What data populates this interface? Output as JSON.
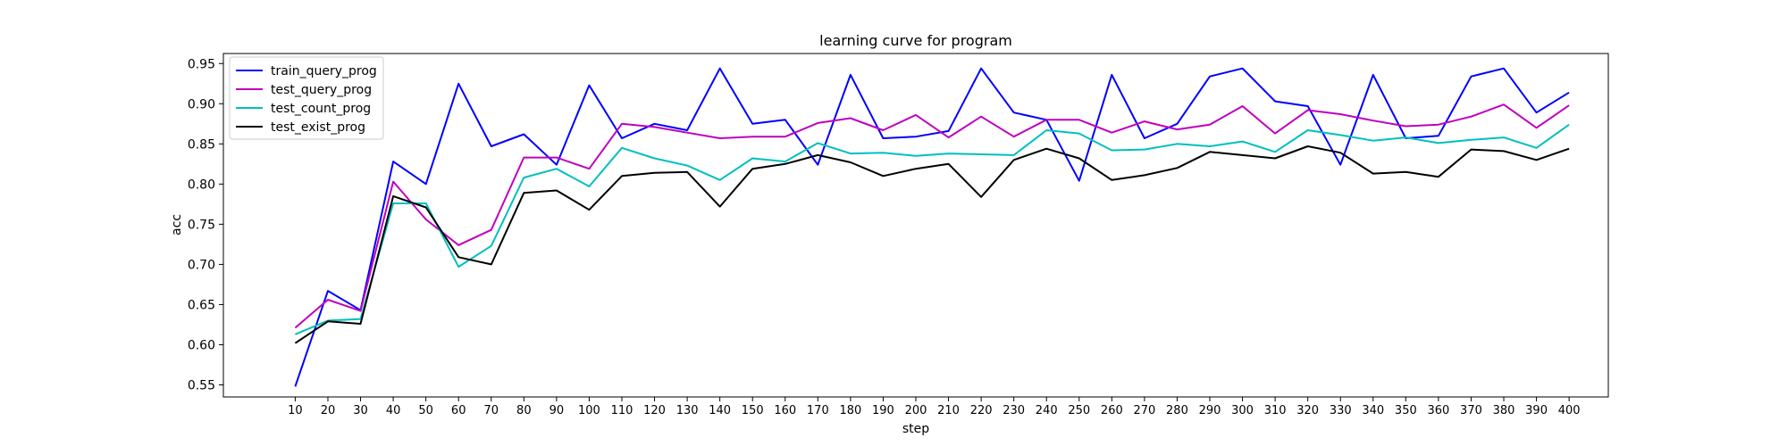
{
  "chart_data": {
    "type": "line",
    "title": "learning curve for program",
    "xlabel": "step",
    "ylabel": "acc",
    "xlim": [
      -12,
      412
    ],
    "ylim": [
      0.535,
      0.9625
    ],
    "x": [
      10,
      20,
      30,
      40,
      50,
      60,
      70,
      80,
      90,
      100,
      110,
      120,
      130,
      140,
      150,
      160,
      170,
      180,
      190,
      200,
      210,
      220,
      230,
      240,
      250,
      260,
      270,
      280,
      290,
      300,
      310,
      320,
      330,
      340,
      350,
      360,
      370,
      380,
      390,
      400
    ],
    "x_tick_labels": [
      "10",
      "20",
      "30",
      "40",
      "50",
      "60",
      "70",
      "80",
      "90",
      "100",
      "110",
      "120",
      "130",
      "140",
      "150",
      "160",
      "170",
      "180",
      "190",
      "200",
      "210",
      "220",
      "230",
      "240",
      "250",
      "260",
      "270",
      "280",
      "290",
      "300",
      "310",
      "320",
      "330",
      "340",
      "350",
      "360",
      "370",
      "380",
      "390",
      "400"
    ],
    "y_ticks": [
      0.55,
      0.6,
      0.65,
      0.7,
      0.75,
      0.8,
      0.85,
      0.9,
      0.95
    ],
    "y_tick_labels": [
      "0.55",
      "0.60",
      "0.65",
      "0.70",
      "0.75",
      "0.80",
      "0.85",
      "0.90",
      "0.95"
    ],
    "grid": false,
    "legend_position": "top-left",
    "series": [
      {
        "name": "train_query_prog",
        "color": "#0000ff",
        "values": [
          0.548,
          0.667,
          0.643,
          0.828,
          0.8,
          0.925,
          0.847,
          0.862,
          0.824,
          0.923,
          0.857,
          0.875,
          0.867,
          0.944,
          0.875,
          0.88,
          0.824,
          0.936,
          0.857,
          0.859,
          0.866,
          0.944,
          0.889,
          0.88,
          0.804,
          0.936,
          0.857,
          0.875,
          0.934,
          0.944,
          0.903,
          0.897,
          0.824,
          0.936,
          0.857,
          0.86,
          0.934,
          0.944,
          0.889,
          0.914
        ]
      },
      {
        "name": "test_query_prog",
        "color": "#bf00bf",
        "values": [
          0.621,
          0.656,
          0.642,
          0.803,
          0.756,
          0.724,
          0.743,
          0.833,
          0.833,
          0.819,
          0.875,
          0.871,
          0.864,
          0.857,
          0.859,
          0.859,
          0.876,
          0.882,
          0.867,
          0.886,
          0.858,
          0.884,
          0.859,
          0.88,
          0.88,
          0.864,
          0.878,
          0.868,
          0.874,
          0.897,
          0.863,
          0.892,
          0.887,
          0.879,
          0.872,
          0.874,
          0.884,
          0.899,
          0.87,
          0.898
        ]
      },
      {
        "name": "test_count_prog",
        "color": "#00bfbf",
        "values": [
          0.613,
          0.63,
          0.632,
          0.776,
          0.776,
          0.697,
          0.723,
          0.808,
          0.819,
          0.797,
          0.845,
          0.832,
          0.823,
          0.805,
          0.832,
          0.828,
          0.851,
          0.838,
          0.839,
          0.835,
          0.838,
          0.837,
          0.836,
          0.867,
          0.863,
          0.842,
          0.843,
          0.85,
          0.847,
          0.853,
          0.84,
          0.867,
          0.861,
          0.854,
          0.858,
          0.851,
          0.855,
          0.858,
          0.845,
          0.874
        ]
      },
      {
        "name": "test_exist_prog",
        "color": "#000000",
        "values": [
          0.602,
          0.629,
          0.626,
          0.785,
          0.771,
          0.709,
          0.7,
          0.789,
          0.792,
          0.768,
          0.81,
          0.814,
          0.815,
          0.772,
          0.819,
          0.825,
          0.836,
          0.827,
          0.81,
          0.819,
          0.825,
          0.784,
          0.83,
          0.844,
          0.832,
          0.805,
          0.811,
          0.82,
          0.84,
          0.836,
          0.832,
          0.847,
          0.839,
          0.813,
          0.815,
          0.809,
          0.843,
          0.841,
          0.83,
          0.844
        ]
      }
    ]
  }
}
